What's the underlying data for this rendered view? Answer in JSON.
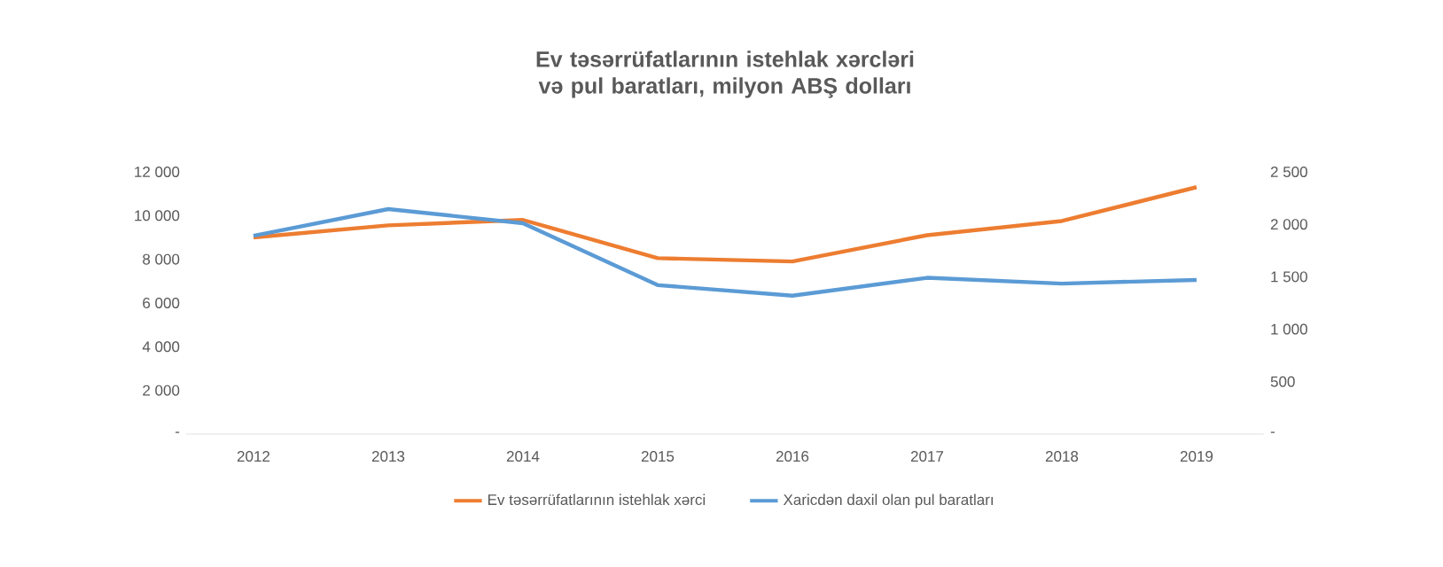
{
  "chart_data": {
    "type": "line",
    "title": "Ev təsərrüfatlarının istehlak xərcləri və pul baratları, milyon ABŞ dolları",
    "categories": [
      "2012",
      "2013",
      "2014",
      "2015",
      "2016",
      "2017",
      "2018",
      "2019"
    ],
    "series": [
      {
        "name": "Ev təsərrüfatlarının istehlak xərci",
        "color": "#ed7d31",
        "values": [
          9000,
          9550,
          9800,
          8050,
          7900,
          9100,
          9750,
          11300
        ]
      },
      {
        "name": "Xaricdən daxil olan pul baratları",
        "color": "#5b9bd5",
        "axis": "y2",
        "values": [
          1890,
          2145,
          2010,
          1420,
          1320,
          1490,
          1435,
          1470
        ]
      }
    ],
    "ylim": [
      0,
      12000
    ],
    "yticks": [
      {
        "value": 0,
        "label": "-"
      },
      {
        "value": 2000,
        "label": "2 000"
      },
      {
        "value": 4000,
        "label": "4 000"
      },
      {
        "value": 6000,
        "label": "6 000"
      },
      {
        "value": 8000,
        "label": "8 000"
      },
      {
        "value": 10000,
        "label": "10 000"
      },
      {
        "value": 12000,
        "label": "12 000"
      }
    ],
    "y2lim": [
      0,
      2500
    ],
    "y2ticks": [
      {
        "value": 0,
        "label": "-"
      },
      {
        "value": 500,
        "label": "500"
      },
      {
        "value": 1000,
        "label": "1 000"
      },
      {
        "value": 1500,
        "label": "1 500"
      },
      {
        "value": 2000,
        "label": "2 000"
      },
      {
        "value": 2500,
        "label": "2 500"
      }
    ],
    "legend": "bottom",
    "marker": "none",
    "line_style": "solid",
    "grid": false
  }
}
